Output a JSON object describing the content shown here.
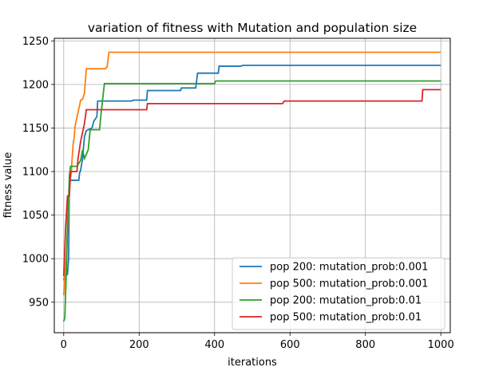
{
  "chart_data": {
    "type": "line",
    "title": "variation of fitness with Mutation and population size",
    "xlabel": "iterations",
    "ylabel": "fitness value",
    "xlim": [
      -25,
      1025
    ],
    "ylim": [
      915,
      1253
    ],
    "xticks": [
      0,
      200,
      400,
      600,
      800,
      1000
    ],
    "yticks": [
      950,
      1000,
      1050,
      1100,
      1150,
      1200,
      1250
    ],
    "grid": true,
    "legend_position": "lower-right",
    "series": [
      {
        "name": "pop 200: mutation_prob:0.001",
        "color": "#1f77b4",
        "points": [
          [
            0,
            975
          ],
          [
            3,
            980
          ],
          [
            10,
            982
          ],
          [
            13,
            1000
          ],
          [
            15,
            1090
          ],
          [
            40,
            1090
          ],
          [
            42,
            1098
          ],
          [
            45,
            1102
          ],
          [
            50,
            1115
          ],
          [
            55,
            1140
          ],
          [
            60,
            1147
          ],
          [
            75,
            1150
          ],
          [
            80,
            1158
          ],
          [
            88,
            1163
          ],
          [
            90,
            1181
          ],
          [
            180,
            1181
          ],
          [
            185,
            1182
          ],
          [
            220,
            1182
          ],
          [
            222,
            1193
          ],
          [
            310,
            1193
          ],
          [
            312,
            1196
          ],
          [
            350,
            1196
          ],
          [
            355,
            1213
          ],
          [
            410,
            1213
          ],
          [
            412,
            1221
          ],
          [
            470,
            1221
          ],
          [
            475,
            1222
          ],
          [
            1000,
            1222
          ]
        ]
      },
      {
        "name": "pop 500: mutation_prob:0.001",
        "color": "#ff7f0e",
        "points": [
          [
            0,
            958
          ],
          [
            3,
            978
          ],
          [
            7,
            1005
          ],
          [
            12,
            1050
          ],
          [
            15,
            1085
          ],
          [
            20,
            1098
          ],
          [
            22,
            1113
          ],
          [
            25,
            1132
          ],
          [
            28,
            1140
          ],
          [
            30,
            1152
          ],
          [
            35,
            1162
          ],
          [
            45,
            1182
          ],
          [
            50,
            1183
          ],
          [
            55,
            1190
          ],
          [
            60,
            1218
          ],
          [
            110,
            1218
          ],
          [
            115,
            1220
          ],
          [
            120,
            1237
          ],
          [
            1000,
            1237
          ]
        ]
      },
      {
        "name": "pop 200: mutation_prob:0.01",
        "color": "#2ca02c",
        "points": [
          [
            0,
            928
          ],
          [
            3,
            932
          ],
          [
            5,
            960
          ],
          [
            8,
            1000
          ],
          [
            10,
            1040
          ],
          [
            13,
            1068
          ],
          [
            15,
            1095
          ],
          [
            18,
            1106
          ],
          [
            35,
            1106
          ],
          [
            38,
            1108
          ],
          [
            45,
            1113
          ],
          [
            50,
            1125
          ],
          [
            55,
            1115
          ],
          [
            65,
            1125
          ],
          [
            70,
            1148
          ],
          [
            95,
            1148
          ],
          [
            98,
            1162
          ],
          [
            105,
            1190
          ],
          [
            108,
            1201
          ],
          [
            400,
            1201
          ],
          [
            403,
            1204
          ],
          [
            1000,
            1204
          ]
        ]
      },
      {
        "name": "pop 500: mutation_prob:0.01",
        "color": "#d62728",
        "points": [
          [
            0,
            980
          ],
          [
            5,
            1035
          ],
          [
            10,
            1072
          ],
          [
            15,
            1072
          ],
          [
            18,
            1100
          ],
          [
            35,
            1100
          ],
          [
            38,
            1115
          ],
          [
            45,
            1135
          ],
          [
            55,
            1155
          ],
          [
            60,
            1171
          ],
          [
            220,
            1171
          ],
          [
            222,
            1178
          ],
          [
            580,
            1178
          ],
          [
            585,
            1181
          ],
          [
            950,
            1181
          ],
          [
            952,
            1194
          ],
          [
            1000,
            1194
          ]
        ]
      }
    ]
  }
}
